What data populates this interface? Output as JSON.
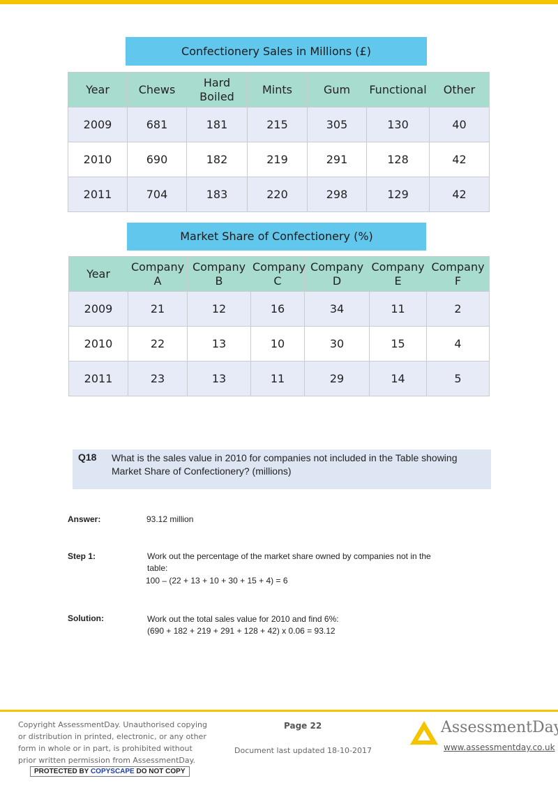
{
  "table1": {
    "title": "Confectionery Sales in Millions (£)",
    "headers": [
      "Year",
      "Chews",
      "Hard\nBoiled",
      "Mints",
      "Gum",
      "Functional",
      "Other"
    ],
    "rows": [
      [
        "2009",
        "681",
        "181",
        "215",
        "305",
        "130",
        "40"
      ],
      [
        "2010",
        "690",
        "182",
        "219",
        "291",
        "128",
        "42"
      ],
      [
        "2011",
        "704",
        "183",
        "220",
        "298",
        "129",
        "42"
      ]
    ]
  },
  "table2": {
    "title": "Market Share of Confectionery (%)",
    "headers": [
      "Year",
      "Company\nA",
      "Company\nB",
      "Company\nC",
      "Company\nD",
      "Company\nE",
      "Company\nF"
    ],
    "rows": [
      [
        "2009",
        "21",
        "12",
        "16",
        "34",
        "11",
        "2"
      ],
      [
        "2010",
        "22",
        "13",
        "10",
        "30",
        "15",
        "4"
      ],
      [
        "2011",
        "23",
        "13",
        "11",
        "29",
        "14",
        "5"
      ]
    ]
  },
  "question": {
    "number": "Q18",
    "text": "What is the sales value in 2010 for companies not included in the Table showing Market Share of Confectionery? (millions)"
  },
  "answer": {
    "label": "Answer:",
    "value": "93.12 million"
  },
  "step1": {
    "label": "Step 1:",
    "line1": "Work out the percentage of the market share owned by companies not in the",
    "line2": "table:",
    "line3": "100 – (22 + 13 + 10 + 30 + 15 + 4) = 6"
  },
  "solution": {
    "label": "Solution:",
    "line1": "Work out the total sales value for 2010 and find 6%:",
    "line2": "(690 + 182 + 219 + 291 + 128 + 42) x 0.06 = 93.12"
  },
  "footer": {
    "copyright_lines": [
      "Copyright AssessmentDay. Unauthorised copying",
      "or distribution in printed, electronic, or any other",
      "form in whole or in part, is prohibited without",
      "prior written permission from AssessmentDay."
    ],
    "copyscape_pre": "PROTECTED BY ",
    "copyscape_brand": "COPYSCAPE",
    "copyscape_post": " DO NOT COPY",
    "page": "Page 22",
    "updated": "Document last updated 18-10-2017",
    "logo_name": "AssessmentDay",
    "logo_url": "www.assessmentday.co.uk"
  },
  "colors": {
    "accent": "#f5c400",
    "caption_bg": "#62c7ec",
    "table_header_bg": "#a8dccf",
    "row_alt_bg": "#e6ebf7",
    "question_bg": "#dfe6f3"
  }
}
